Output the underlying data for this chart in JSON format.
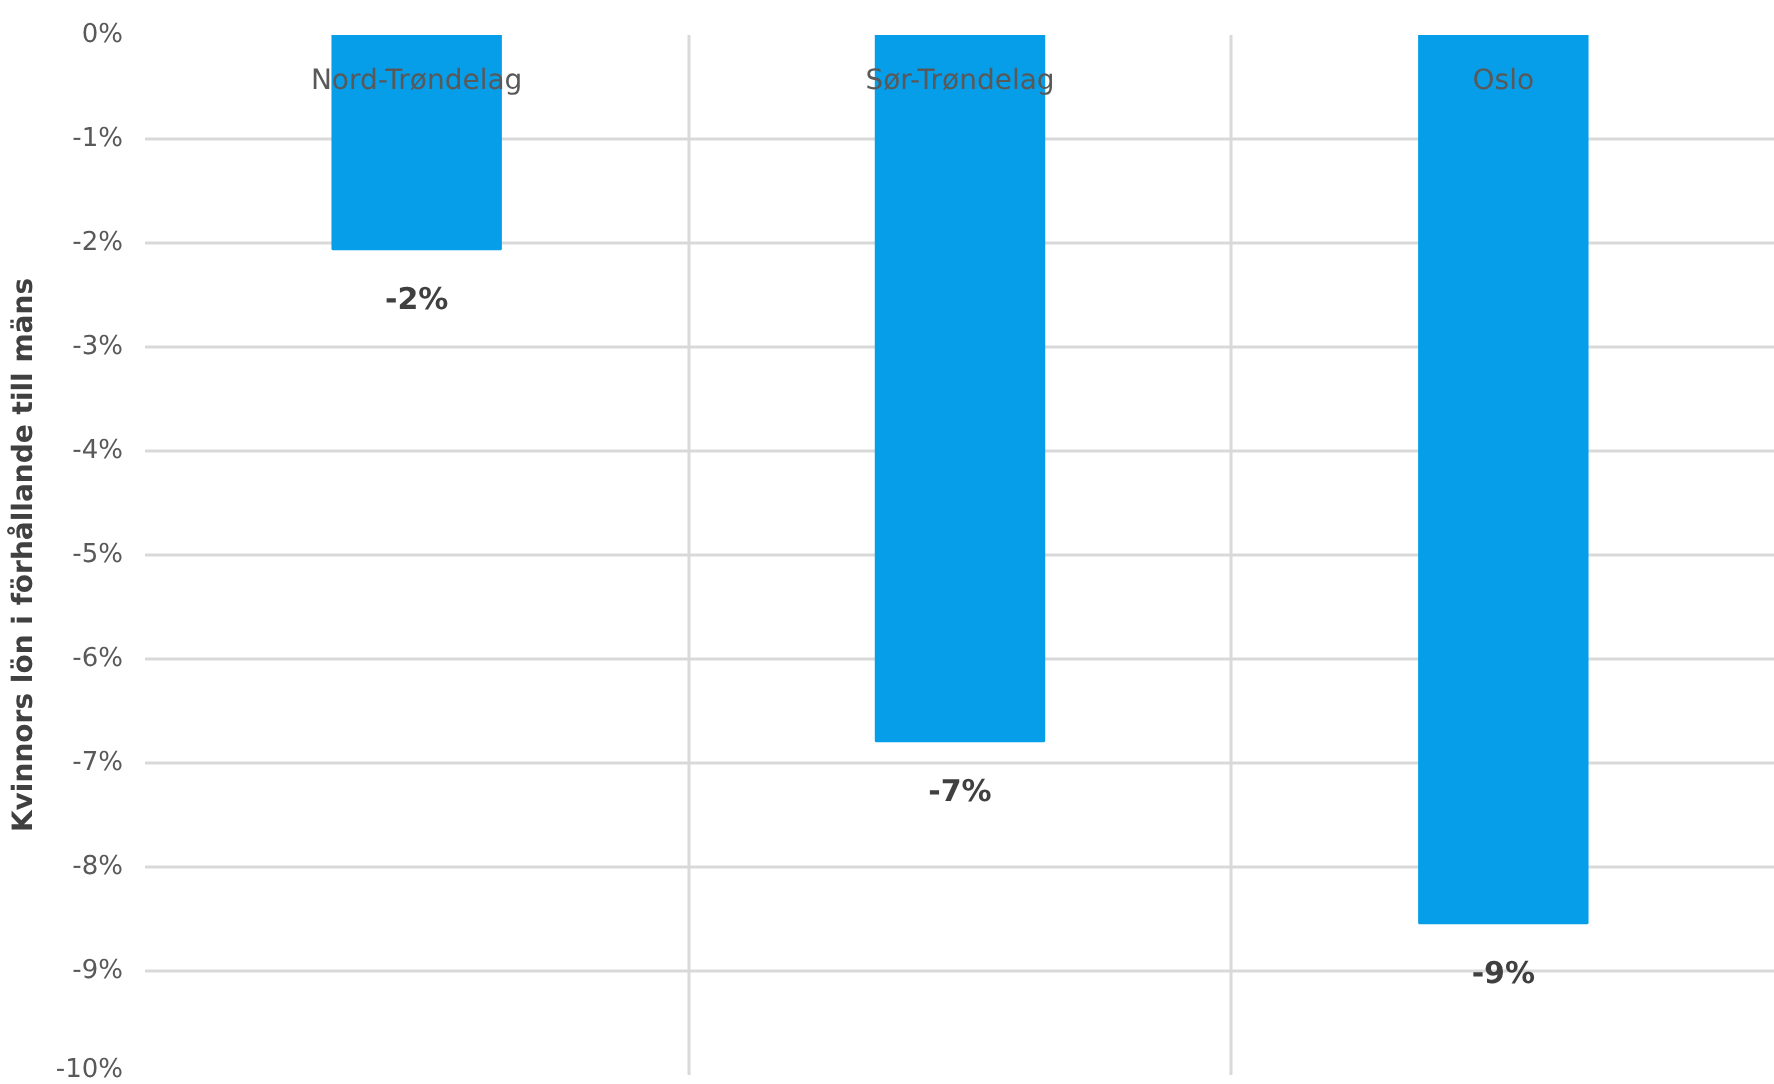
{
  "chart_data": {
    "type": "bar",
    "ylabel": "Kvinnors lön i förhållande till mäns",
    "categories": [
      "Nord-Trøndelag",
      "Sør-Trøndelag",
      "Oslo"
    ],
    "values": [
      -2.06,
      -6.79,
      -8.54
    ],
    "color": "#069ee9",
    "value_labels": [
      "-2%",
      "-7%",
      "-9%"
    ],
    "ylim": [
      -10,
      0
    ],
    "yticks": [
      {
        "value": 0,
        "label": "0%"
      },
      {
        "value": -1,
        "label": "-1%"
      },
      {
        "value": -2,
        "label": "-2%"
      },
      {
        "value": -3,
        "label": "-3%"
      },
      {
        "value": -4,
        "label": "-4%"
      },
      {
        "value": -5,
        "label": "-5%"
      },
      {
        "value": -6,
        "label": "-6%"
      },
      {
        "value": -7,
        "label": "-7%"
      },
      {
        "value": -8,
        "label": "-8%"
      },
      {
        "value": -9,
        "label": "-9%"
      },
      {
        "value": -10,
        "label": "-10%"
      }
    ],
    "grid": true
  }
}
